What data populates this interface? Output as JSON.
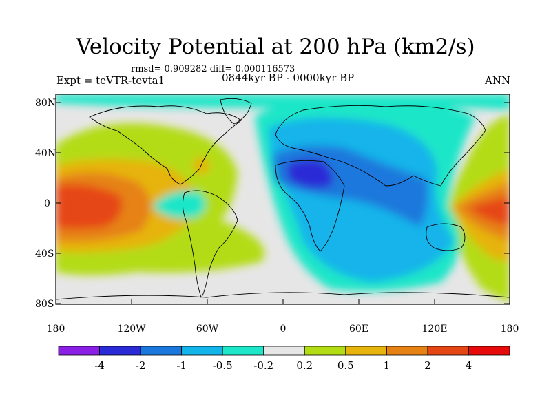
{
  "title": "Velocity Potential at 200 hPa (km2/s)",
  "stats_line": "rmsd= 0.909282 diff= 0.000116573",
  "experiment": "Expt = teVTR-tevta1",
  "period": "0844kyr BP - 0000kyr BP",
  "season": "ANN",
  "axes": {
    "lat_labels": [
      "80N",
      "40N",
      "0",
      "40S",
      "80S"
    ],
    "lon_labels": [
      "180",
      "120W",
      "60W",
      "0",
      "60E",
      "120E",
      "180"
    ]
  },
  "colorbar": {
    "labels": [
      "-4",
      "-2",
      "-1",
      "-0.5",
      "-0.2",
      "0.2",
      "0.5",
      "1",
      "2",
      "4"
    ],
    "colors": [
      "#8a1fe6",
      "#2a2ad6",
      "#1a78dc",
      "#12b4ea",
      "#1ee6c8",
      "#e6e6e6",
      "#b4dc14",
      "#e6b40c",
      "#e68214",
      "#e64614",
      "#e60a0a"
    ]
  },
  "colors": {
    "background": "#ffffff",
    "neutral": "#e6e6e6",
    "coast": "#000000"
  }
}
